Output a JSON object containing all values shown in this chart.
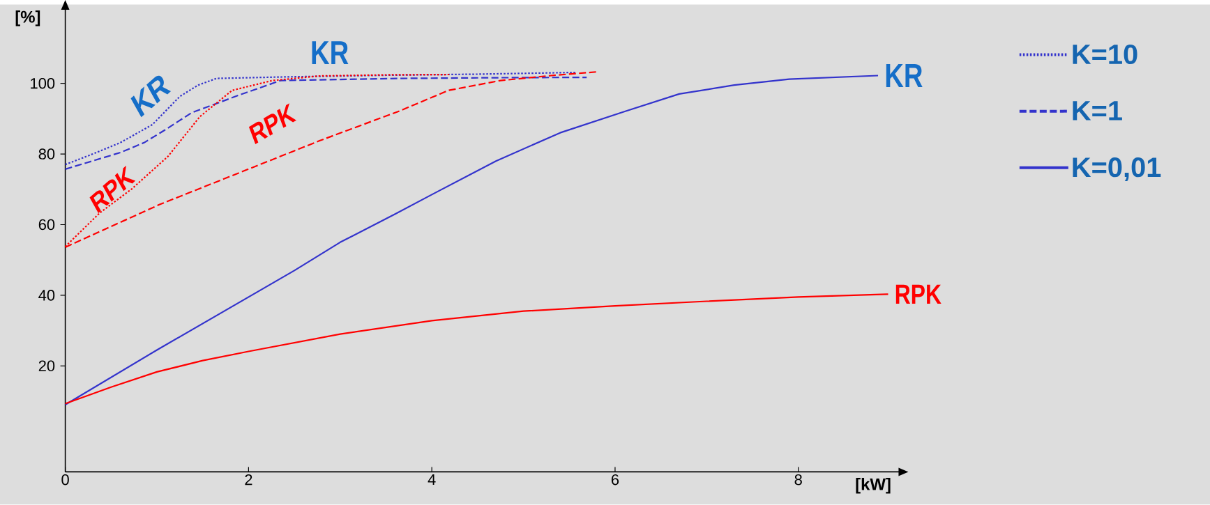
{
  "chart_data": {
    "type": "line",
    "xlabel": "[kW]",
    "ylabel": "[%]",
    "xlim": [
      0,
      9.1
    ],
    "ylim": [
      -10,
      121
    ],
    "xticks": [
      0,
      2,
      4,
      6,
      8
    ],
    "yticks": [
      20,
      40,
      60,
      80,
      100
    ],
    "legend": "right",
    "series": [
      {
        "name": "K=10",
        "color": "#3333cc",
        "line_style": "dotted",
        "x": [
          0,
          0.3,
          0.6,
          0.95,
          1.25,
          1.45,
          1.65,
          2.35,
          3.5,
          4.5,
          5.58
        ],
        "values": [
          77,
          80,
          83.2,
          88.3,
          96.3,
          99.5,
          101.4,
          101.8,
          102.3,
          102.6,
          103.1
        ]
      },
      {
        "name": "K=1",
        "color": "#3333cc",
        "line_style": "dashed",
        "x": [
          0,
          0.6,
          0.86,
          1.1,
          1.38,
          1.91,
          2.35,
          3.66,
          4.7,
          5.69
        ],
        "values": [
          75.7,
          80.4,
          83.2,
          87,
          91.7,
          96.8,
          100.8,
          101.4,
          101.6,
          101.7
        ]
      },
      {
        "name": "K=0,01",
        "color": "#3333cc",
        "line_style": "solid",
        "x": [
          0,
          1,
          2,
          2.5,
          3,
          3.6,
          4,
          4.7,
          5.4,
          6.1,
          6.7,
          7.3,
          7.9,
          8.87
        ],
        "values": [
          9,
          24.5,
          39.5,
          47,
          55,
          63,
          68.5,
          78,
          86,
          92,
          97,
          99.5,
          101.2,
          102.2
        ]
      },
      {
        "color": "#ff0000",
        "line_style": "dotted",
        "x": [
          0,
          0.38,
          0.73,
          1.12,
          1.47,
          1.82,
          2.26,
          2.78,
          3.5,
          4.2
        ],
        "values": [
          53.8,
          63.4,
          70.2,
          79.3,
          90.6,
          98,
          100.8,
          102.1,
          102.4,
          102.5
        ]
      },
      {
        "color": "#ff0000",
        "line_style": "dashed",
        "x": [
          0,
          1.03,
          1.91,
          2.78,
          3.66,
          4.18,
          4.75,
          5.3,
          5.82
        ],
        "values": [
          53.6,
          65.7,
          74.8,
          83.8,
          92.3,
          98,
          100.8,
          102.2,
          103.3
        ]
      },
      {
        "color": "#ff0000",
        "line_style": "solid",
        "x": [
          0,
          0.5,
          1,
          1.5,
          2,
          3,
          4,
          5,
          6,
          7,
          8,
          8.98
        ],
        "values": [
          9.3,
          14,
          18.3,
          21.5,
          24.1,
          29,
          32.8,
          35.5,
          37,
          38.3,
          39.5,
          40.3
        ]
      }
    ],
    "annotations": [
      "KR",
      "KR",
      "RPK",
      "RPK",
      {
        "text": "KR",
        "x": 8.87,
        "y": 102.2
      },
      {
        "text": "RPK",
        "x": 8.98,
        "y": 40.3
      }
    ]
  }
}
